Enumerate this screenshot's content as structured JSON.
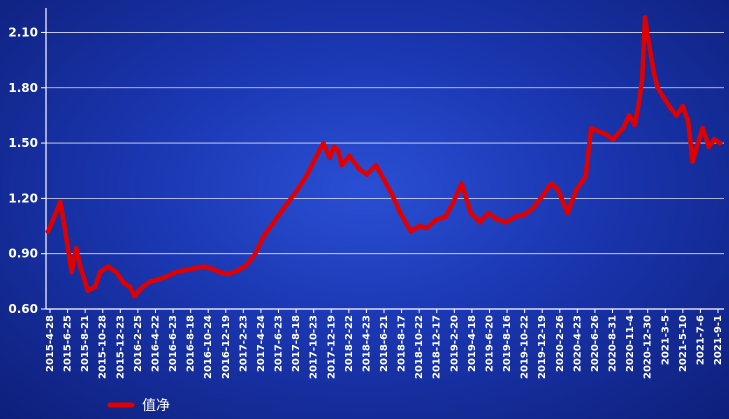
{
  "chart_data": {
    "type": "line",
    "title": "",
    "xlabel": "",
    "ylabel": "",
    "ylim": [
      0.6,
      2.2
    ],
    "y_ticks": [
      "0.60",
      "0.90",
      "1.20",
      "1.50",
      "1.80",
      "2.10"
    ],
    "x_ticks": [
      "2015-4-28",
      "2015-6-25",
      "2015-8-21",
      "2015-10-28",
      "2015-12-23",
      "2016-2-25",
      "2016-4-22",
      "2016-6-23",
      "2016-8-18",
      "2016-10-24",
      "2016-12-19",
      "2017-2-23",
      "2017-4-24",
      "2017-6-23",
      "2017-8-18",
      "2017-10-23",
      "2017-12-19",
      "2018-2-22",
      "2018-4-23",
      "2018-6-21",
      "2018-8-17",
      "2018-10-22",
      "2018-12-17",
      "2019-2-20",
      "2019-4-18",
      "2019-6-20",
      "2019-8-16",
      "2019-10-22",
      "2019-12-19",
      "2020-2-26",
      "2020-4-23",
      "2020-6-26",
      "2020-8-31",
      "2020-11-4",
      "2020-12-30",
      "2021-3-5",
      "2021-5-10",
      "2021-7-6",
      "2021-9-1"
    ],
    "grid": true,
    "legend_position": "bottom-left",
    "series": [
      {
        "name": "值净",
        "color": "#e00000",
        "x": [
          "2015-4-28",
          "2015-5-20",
          "2015-6-10",
          "2015-6-25",
          "2015-7-8",
          "2015-7-20",
          "2015-8-5",
          "2015-8-21",
          "2015-9-15",
          "2015-10-10",
          "2015-10-28",
          "2015-11-25",
          "2015-12-23",
          "2016-1-20",
          "2016-2-10",
          "2016-2-25",
          "2016-3-25",
          "2016-4-22",
          "2016-5-20",
          "2016-6-23",
          "2016-7-20",
          "2016-8-18",
          "2016-9-20",
          "2016-10-24",
          "2016-11-20",
          "2016-12-19",
          "2017-1-20",
          "2017-2-23",
          "2017-3-25",
          "2017-4-24",
          "2017-5-25",
          "2017-6-23",
          "2017-7-20",
          "2017-8-18",
          "2017-9-20",
          "2017-10-23",
          "2017-11-15",
          "2017-12-5",
          "2017-12-19",
          "2018-1-10",
          "2018-1-25",
          "2018-2-8",
          "2018-2-22",
          "2018-3-20",
          "2018-4-23",
          "2018-5-20",
          "2018-6-21",
          "2018-7-20",
          "2018-8-17",
          "2018-9-15",
          "2018-10-22",
          "2018-11-20",
          "2018-12-17",
          "2019-1-15",
          "2019-2-20",
          "2019-3-20",
          "2019-4-18",
          "2019-5-20",
          "2019-6-20",
          "2019-7-20",
          "2019-8-16",
          "2019-9-20",
          "2019-10-22",
          "2019-11-20",
          "2019-12-19",
          "2020-1-20",
          "2020-2-26",
          "2020-3-20",
          "2020-4-23",
          "2020-5-25",
          "2020-6-26",
          "2020-7-15",
          "2020-8-31",
          "2020-9-30",
          "2020-11-4",
          "2020-11-25",
          "2020-12-15",
          "2020-12-30",
          "2021-1-10",
          "2021-1-20",
          "2021-2-5",
          "2021-2-20",
          "2021-3-5",
          "2021-3-25",
          "2021-4-15",
          "2021-5-10",
          "2021-6-1",
          "2021-6-20",
          "2021-7-6",
          "2021-7-25",
          "2021-8-10",
          "2021-9-1",
          "2021-9-20",
          "2021-10-10"
        ],
        "y": [
          1.02,
          1.1,
          1.18,
          1.05,
          0.92,
          0.8,
          0.93,
          0.82,
          0.7,
          0.72,
          0.8,
          0.83,
          0.8,
          0.74,
          0.72,
          0.67,
          0.72,
          0.75,
          0.76,
          0.78,
          0.8,
          0.81,
          0.82,
          0.83,
          0.82,
          0.8,
          0.79,
          0.81,
          0.84,
          0.9,
          1.0,
          1.06,
          1.12,
          1.18,
          1.25,
          1.33,
          1.4,
          1.46,
          1.5,
          1.42,
          1.48,
          1.46,
          1.38,
          1.43,
          1.36,
          1.33,
          1.38,
          1.3,
          1.22,
          1.12,
          1.02,
          1.05,
          1.04,
          1.08,
          1.1,
          1.18,
          1.28,
          1.12,
          1.07,
          1.12,
          1.09,
          1.07,
          1.1,
          1.11,
          1.14,
          1.2,
          1.28,
          1.25,
          1.12,
          1.25,
          1.32,
          1.58,
          1.55,
          1.52,
          1.58,
          1.65,
          1.6,
          1.72,
          1.85,
          2.18,
          2.02,
          1.88,
          1.8,
          1.75,
          1.7,
          1.65,
          1.7,
          1.62,
          1.4,
          1.5,
          1.58,
          1.48,
          1.52,
          1.5
        ]
      }
    ]
  }
}
